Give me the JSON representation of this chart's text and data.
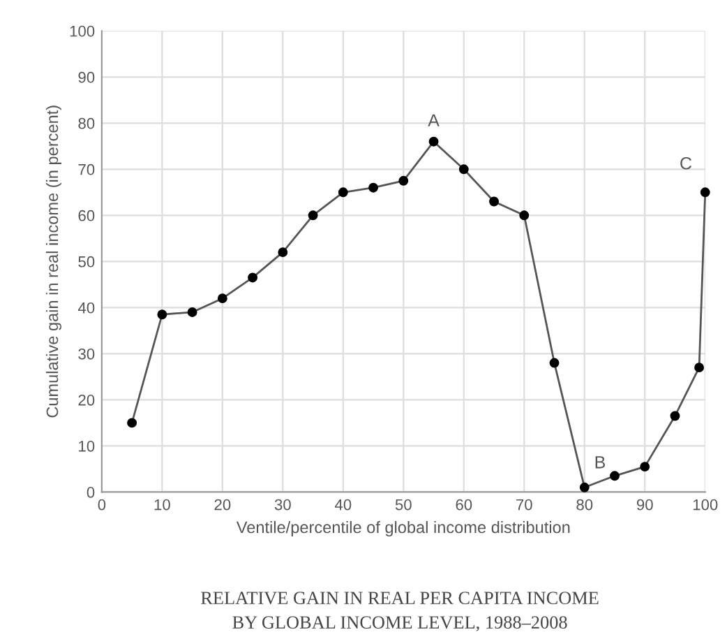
{
  "chart_data": {
    "type": "line",
    "title": "RELATIVE GAIN IN REAL PER CAPITA INCOME\nBY GLOBAL INCOME LEVEL, 1988–2008",
    "xlabel": "Ventile/percentile of global income distribution",
    "ylabel": "Cumulative gain in real income (in percent)",
    "series": [
      {
        "color": "#000000",
        "x": [
          5,
          10,
          15,
          20,
          25,
          30,
          35,
          40,
          45,
          50,
          55,
          60,
          65,
          70,
          75,
          80,
          85,
          90,
          95,
          99,
          100
        ],
        "values": [
          15,
          38.5,
          39,
          42,
          46.5,
          52,
          60,
          65,
          66,
          67.5,
          76,
          70,
          63,
          60,
          28,
          1,
          3.5,
          5.5,
          16.5,
          27,
          65
        ]
      }
    ],
    "xlim": [
      0,
      100
    ],
    "ylim": [
      0,
      100
    ],
    "xticks": [
      0,
      10,
      20,
      30,
      40,
      50,
      60,
      70,
      80,
      90,
      100
    ],
    "yticks": [
      0,
      10,
      20,
      30,
      40,
      50,
      60,
      70,
      80,
      90,
      100
    ],
    "grid": true,
    "marker": "circle",
    "line_style": "solid",
    "annotations": [
      {
        "text": "A",
        "x": 55,
        "y": 76
      },
      {
        "text": "B",
        "x": 80,
        "y": 1
      },
      {
        "text": "C",
        "x": 100,
        "y": 65
      }
    ]
  }
}
